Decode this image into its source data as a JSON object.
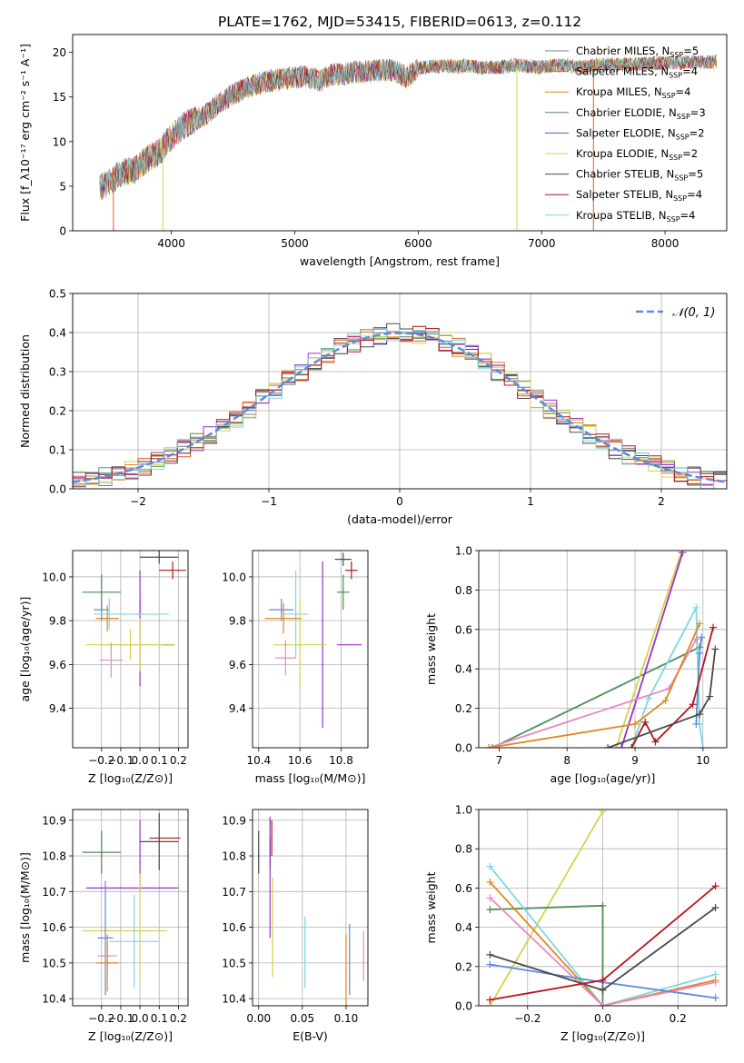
{
  "title": "PLATE=1762, MJD=53415, FIBERID=0613, z=0.112",
  "colors": {
    "chabrier_miles": "#7f7f7f",
    "salpeter_miles": "#e05a2a",
    "kroupa_miles": "#e0871c",
    "chabrier_elodie": "#4e8c55",
    "salpeter_elodie": "#9b30c9",
    "kroupa_elodie": "#d6d24a",
    "chabrier_stelib": "#4a4a4a",
    "salpeter_stelib": "#b5141c",
    "kroupa_stelib": "#7fd6e0",
    "normal_curve": "#5b8bd9",
    "pink": "#e78ac3",
    "blue": "#5b7fd9",
    "grid": "#b0b0b0"
  },
  "chart_data": [
    {
      "id": "spectrum",
      "type": "line",
      "xlabel": "wavelength [Angstrom, rest frame]",
      "ylabel": "Flux [f_λ10⁻¹⁷ erg cm⁻² s⁻¹ A⁻¹]",
      "xlim": [
        3200,
        8500
      ],
      "ylim": [
        0,
        22
      ],
      "xticks": [
        "4000",
        "5000",
        "6000",
        "7000",
        "8000"
      ],
      "yticks": [
        "0",
        "5",
        "10",
        "15",
        "20"
      ],
      "legend": [
        {
          "label": "Chabrier MILES, N_SSP=5",
          "sub": "SSP",
          "pre": "Chabrier MILES, N",
          "post": "=5",
          "color": "chabrier_miles"
        },
        {
          "label": "Salpeter MILES, N_SSP=4",
          "sub": "SSP",
          "pre": "Salpeter MILES, N",
          "post": "=4",
          "color": "salpeter_miles"
        },
        {
          "label": "Kroupa MILES, N_SSP=4",
          "sub": "SSP",
          "pre": "Kroupa MILES, N",
          "post": "=4",
          "color": "kroupa_miles"
        },
        {
          "label": "Chabrier ELODIE, N_SSP=3",
          "sub": "SSP",
          "pre": "Chabrier ELODIE, N",
          "post": "=3",
          "color": "chabrier_elodie"
        },
        {
          "label": "Salpeter ELODIE, N_SSP=2",
          "sub": "SSP",
          "pre": "Salpeter ELODIE, N",
          "post": "=2",
          "color": "salpeter_elodie"
        },
        {
          "label": "Kroupa ELODIE, N_SSP=2",
          "sub": "SSP",
          "pre": "Kroupa ELODIE, N",
          "post": "=2",
          "color": "kroupa_elodie"
        },
        {
          "label": "Chabrier STELIB, N_SSP=5",
          "sub": "SSP",
          "pre": "Chabrier STELIB, N",
          "post": "=5",
          "color": "chabrier_stelib"
        },
        {
          "label": "Salpeter STELIB, N_SSP=4",
          "sub": "SSP",
          "pre": "Salpeter STELIB, N",
          "post": "=4",
          "color": "salpeter_stelib"
        },
        {
          "label": "Kroupa STELIB, N_SSP=4",
          "sub": "SSP",
          "pre": "Kroupa STELIB, N",
          "post": "=4",
          "color": "kroupa_stelib"
        }
      ],
      "continuum": [
        [
          3420,
          4.8
        ],
        [
          3500,
          5.5
        ],
        [
          3600,
          6.5
        ],
        [
          3700,
          6.8
        ],
        [
          3800,
          8.0
        ],
        [
          3900,
          8.8
        ],
        [
          4000,
          10.5
        ],
        [
          4100,
          11.8
        ],
        [
          4200,
          12.5
        ],
        [
          4300,
          13.2
        ],
        [
          4400,
          14.5
        ],
        [
          4500,
          15.3
        ],
        [
          4600,
          16.0
        ],
        [
          4700,
          16.5
        ],
        [
          4800,
          16.8
        ],
        [
          4900,
          17.0
        ],
        [
          5000,
          17.2
        ],
        [
          5100,
          17.3
        ],
        [
          5200,
          16.8
        ],
        [
          5300,
          17.5
        ],
        [
          5400,
          17.6
        ],
        [
          5500,
          17.8
        ],
        [
          5600,
          17.9
        ],
        [
          5700,
          18.0
        ],
        [
          5800,
          18.0
        ],
        [
          5900,
          17.2
        ],
        [
          6000,
          18.2
        ],
        [
          6100,
          18.4
        ],
        [
          6200,
          18.5
        ],
        [
          6300,
          18.4
        ],
        [
          6400,
          18.5
        ],
        [
          6500,
          18.3
        ],
        [
          6600,
          18.3
        ],
        [
          6700,
          18.4
        ],
        [
          6800,
          18.6
        ],
        [
          6900,
          18.4
        ],
        [
          7000,
          18.3
        ],
        [
          7100,
          18.5
        ],
        [
          7200,
          18.6
        ],
        [
          7300,
          18.3
        ],
        [
          7400,
          18.5
        ],
        [
          7500,
          18.7
        ]
      ],
      "dropouts": [
        {
          "x": 3530,
          "color": "salpeter_miles"
        },
        {
          "x": 3930,
          "color": "kroupa_elodie"
        },
        {
          "x": 6800,
          "color": "kroupa_elodie"
        },
        {
          "x": 7420,
          "color": "salpeter_miles"
        }
      ]
    },
    {
      "id": "residuals",
      "type": "histogram",
      "xlabel": "(data-model)/error",
      "ylabel": "Normed distribution",
      "xlim": [
        -2.5,
        2.5
      ],
      "ylim": [
        0,
        0.5
      ],
      "xticks": [
        "−2",
        "−1",
        "0",
        "1",
        "2"
      ],
      "yticks": [
        "0.0",
        "0.1",
        "0.2",
        "0.3",
        "0.4",
        "0.5"
      ],
      "bin_width": 0.1,
      "legend_label": "𝒩(0, 1)",
      "series_colors": [
        "chabrier_miles",
        "salpeter_miles",
        "kroupa_miles",
        "chabrier_elodie",
        "salpeter_elodie",
        "kroupa_elodie",
        "chabrier_stelib",
        "salpeter_stelib",
        "kroupa_stelib"
      ]
    },
    {
      "id": "age_vs_z",
      "type": "errorbar",
      "xlabel": "Z [log₁₀(Z/Z⊙)]",
      "ylabel": "age  [log₁₀(age/yr)]",
      "xlim": [
        -0.35,
        0.25
      ],
      "ylim": [
        9.22,
        10.12
      ],
      "xticks": [
        "−0.2",
        "−0.1",
        "0.0",
        "0.1",
        "0.2"
      ],
      "yticks": [
        "9.4",
        "9.6",
        "9.8",
        "10.0"
      ],
      "points": [
        {
          "x": 0.1,
          "y": 10.09,
          "xerr": 0.1,
          "yerr": 0.03,
          "color": "chabrier_stelib"
        },
        {
          "x": 0.17,
          "y": 10.03,
          "xerr": 0.07,
          "yerr": 0.04,
          "color": "salpeter_stelib"
        },
        {
          "x": -0.2,
          "y": 9.93,
          "xerr": 0.1,
          "yerr": 0.08,
          "color": "chabrier_elodie"
        },
        {
          "x": -0.2,
          "y": 9.85,
          "xerr": 0.04,
          "yerr": 0.05,
          "color": "normal_curve"
        },
        {
          "x": -0.16,
          "y": 9.83,
          "xerr": 0.08,
          "yerr": 0.07,
          "color": "kroupa_stelib"
        },
        {
          "x": -0.17,
          "y": 9.81,
          "xerr": 0.06,
          "yerr": 0.06,
          "color": "kroupa_miles"
        },
        {
          "x": 0.0,
          "y": 9.93,
          "xerr": 0.0,
          "yerr": 0.1,
          "color": "salpeter_elodie"
        },
        {
          "x": 0.0,
          "y": 9.7,
          "xerr": 0.0,
          "yerr": 0.2,
          "color": "salpeter_elodie"
        },
        {
          "x": -0.05,
          "y": 9.69,
          "xerr": 0.23,
          "yerr": 0.07,
          "color": "kroupa_elodie"
        },
        {
          "x": 0.15,
          "y": 9.69,
          "xerr": 0.03,
          "yerr": 0.0,
          "color": "salpeter_elodie"
        },
        {
          "x": 0.0,
          "y": 9.69,
          "xerr": 0.18,
          "yerr": 0.12,
          "color": "kroupa_elodie"
        },
        {
          "x": -0.15,
          "y": 9.62,
          "xerr": 0.06,
          "yerr": 0.08,
          "color": "pink"
        },
        {
          "x": 0.02,
          "y": 9.83,
          "xerr": 0.13,
          "yerr": 0.0,
          "color": "kroupa_stelib"
        }
      ]
    },
    {
      "id": "age_vs_mass",
      "type": "errorbar",
      "xlabel": "mass [log₁₀(M/M⊙)]",
      "xlim": [
        10.37,
        10.93
      ],
      "ylim": [
        9.22,
        10.12
      ],
      "xticks": [
        "10.4",
        "10.6",
        "10.8"
      ],
      "yticks": [
        "9.4",
        "9.6",
        "9.8",
        "10.0"
      ],
      "points": [
        {
          "x": 10.81,
          "y": 10.08,
          "xerr": 0.04,
          "yerr": 0.03,
          "color": "chabrier_stelib"
        },
        {
          "x": 10.85,
          "y": 10.03,
          "xerr": 0.03,
          "yerr": 0.04,
          "color": "salpeter_stelib"
        },
        {
          "x": 10.81,
          "y": 9.93,
          "xerr": 0.03,
          "yerr": 0.08,
          "color": "chabrier_elodie"
        },
        {
          "x": 10.51,
          "y": 9.85,
          "xerr": 0.06,
          "yerr": 0.05,
          "color": "normal_curve"
        },
        {
          "x": 10.58,
          "y": 9.83,
          "xerr": 0.06,
          "yerr": 0.2,
          "color": "kroupa_stelib"
        },
        {
          "x": 10.52,
          "y": 9.81,
          "xerr": 0.09,
          "yerr": 0.07,
          "color": "kroupa_miles"
        },
        {
          "x": 10.71,
          "y": 9.69,
          "xerr": 0.0,
          "yerr": 0.38,
          "color": "salpeter_elodie"
        },
        {
          "x": 10.84,
          "y": 9.69,
          "xerr": 0.06,
          "yerr": 0.0,
          "color": "salpeter_elodie"
        },
        {
          "x": 10.6,
          "y": 9.69,
          "xerr": 0.13,
          "yerr": 0.2,
          "color": "kroupa_elodie"
        },
        {
          "x": 10.53,
          "y": 9.63,
          "xerr": 0.05,
          "yerr": 0.08,
          "color": "pink"
        }
      ]
    },
    {
      "id": "weight_vs_age",
      "type": "line",
      "xlabel": "age  [log₁₀(age/yr)]",
      "ylabel": "mass weight",
      "xlim": [
        6.7,
        10.35
      ],
      "ylim": [
        0,
        1
      ],
      "xticks": [
        "7",
        "8",
        "9",
        "10"
      ],
      "yticks": [
        "0.0",
        "0.2",
        "0.4",
        "0.6",
        "0.8",
        "1.0"
      ],
      "series": [
        {
          "color": "chabrier_elodie",
          "x": [
            6.9,
            9.95
          ],
          "y": [
            0.0,
            0.51
          ]
        },
        {
          "color": "kroupa_elodie",
          "x": [
            8.72,
            9.68
          ],
          "y": [
            0.0,
            0.99
          ]
        },
        {
          "color": "salpeter_elodie",
          "x": [
            8.8,
            9.7
          ],
          "y": [
            0.0,
            0.99
          ]
        },
        {
          "color": "kroupa_stelib",
          "x": [
            8.95,
            9.2,
            9.9,
            9.95,
            10.0
          ],
          "y": [
            0.0,
            0.25,
            0.71,
            0.12,
            0.0
          ]
        },
        {
          "color": "pink",
          "x": [
            6.85,
            9.5,
            9.9
          ],
          "y": [
            0.0,
            0.3,
            0.55
          ]
        },
        {
          "color": "kroupa_miles",
          "x": [
            6.85,
            9.0,
            9.45,
            9.95
          ],
          "y": [
            0.0,
            0.12,
            0.24,
            0.63
          ]
        },
        {
          "color": "normal_curve",
          "x": [
            9.9,
            9.95,
            9.98
          ],
          "y": [
            0.12,
            0.48,
            0.56
          ]
        },
        {
          "color": "salpeter_stelib",
          "x": [
            8.95,
            9.15,
            9.3,
            9.85,
            10.15
          ],
          "y": [
            0.0,
            0.13,
            0.03,
            0.22,
            0.61
          ]
        },
        {
          "color": "chabrier_stelib",
          "x": [
            8.6,
            9.95,
            10.1,
            10.18
          ],
          "y": [
            0.0,
            0.17,
            0.26,
            0.5
          ]
        }
      ]
    },
    {
      "id": "mass_vs_z",
      "type": "errorbar",
      "xlabel": "Z [log₁₀(Z/Z⊙)]",
      "ylabel": "mass [log₁₀(M/M⊙)]",
      "xlim": [
        -0.35,
        0.25
      ],
      "ylim": [
        10.38,
        10.93
      ],
      "xticks": [
        "−0.2",
        "−0.1",
        "0.0",
        "0.1",
        "0.2"
      ],
      "yticks": [
        "10.4",
        "10.5",
        "10.6",
        "10.7",
        "10.8",
        "10.9"
      ],
      "points": [
        {
          "x": 0.13,
          "y": 10.85,
          "xerr": 0.08,
          "yerr": 0.0,
          "color": "salpeter_stelib"
        },
        {
          "x": 0.1,
          "y": 10.84,
          "xerr": 0.1,
          "yerr": 0.08,
          "color": "chabrier_stelib"
        },
        {
          "x": -0.2,
          "y": 10.81,
          "xerr": 0.1,
          "yerr": 0.06,
          "color": "chabrier_elodie"
        },
        {
          "x": 0.0,
          "y": 10.8,
          "xerr": 0.0,
          "yerr": 0.1,
          "color": "salpeter_elodie"
        },
        {
          "x": -0.04,
          "y": 10.71,
          "xerr": 0.24,
          "yerr": 0.0,
          "color": "salpeter_elodie"
        },
        {
          "x": 0.0,
          "y": 10.6,
          "xerr": 0.0,
          "yerr": 0.15,
          "color": "kroupa_elodie"
        },
        {
          "x": -0.08,
          "y": 10.59,
          "xerr": 0.22,
          "yerr": 0.0,
          "color": "kroupa_elodie"
        },
        {
          "x": -0.03,
          "y": 10.56,
          "xerr": 0.13,
          "yerr": 0.13,
          "color": "kroupa_stelib"
        },
        {
          "x": -0.18,
          "y": 10.57,
          "xerr": 0.04,
          "yerr": 0.16,
          "color": "normal_curve"
        },
        {
          "x": -0.17,
          "y": 10.52,
          "xerr": 0.05,
          "yerr": 0.04,
          "color": "pink"
        },
        {
          "x": -0.17,
          "y": 10.5,
          "xerr": 0.06,
          "yerr": 0.08,
          "color": "kroupa_miles"
        }
      ]
    },
    {
      "id": "mass_vs_ebv",
      "type": "errorbar",
      "xlabel": "E(B-V)",
      "xlim": [
        -0.007,
        0.125
      ],
      "ylim": [
        10.38,
        10.93
      ],
      "xticks": [
        "0.00",
        "0.05",
        "0.10"
      ],
      "yticks": [
        "10.4",
        "10.5",
        "10.6",
        "10.7",
        "10.8",
        "10.9"
      ],
      "points": [
        {
          "x": 0.0,
          "y": 10.81,
          "xerr": 0.0,
          "yerr": 0.06,
          "color": "chabrier_stelib"
        },
        {
          "x": 0.013,
          "y": 10.84,
          "xerr": 0.0,
          "yerr": 0.07,
          "color": "salpeter_elodie"
        },
        {
          "x": 0.015,
          "y": 10.85,
          "xerr": 0.0,
          "yerr": 0.05,
          "color": "salpeter_stelib"
        },
        {
          "x": 0.013,
          "y": 10.71,
          "xerr": 0.0,
          "yerr": 0.14,
          "color": "salpeter_elodie"
        },
        {
          "x": 0.016,
          "y": 10.6,
          "xerr": 0.0,
          "yerr": 0.14,
          "color": "kroupa_elodie"
        },
        {
          "x": 0.053,
          "y": 10.53,
          "xerr": 0.0,
          "yerr": 0.1,
          "color": "kroupa_stelib"
        },
        {
          "x": 0.1,
          "y": 10.48,
          "xerr": 0.0,
          "yerr": 0.1,
          "color": "kroupa_miles"
        },
        {
          "x": 0.104,
          "y": 10.51,
          "xerr": 0.0,
          "yerr": 0.1,
          "color": "normal_curve"
        },
        {
          "x": 0.12,
          "y": 10.52,
          "xerr": 0.0,
          "yerr": 0.07,
          "color": "pink"
        }
      ]
    },
    {
      "id": "weight_vs_z",
      "type": "line",
      "xlabel": "Z [log₁₀(Z/Z⊙)]",
      "ylabel": "mass weight",
      "xlim": [
        -0.33,
        0.33
      ],
      "ylim": [
        0,
        1
      ],
      "xticks": [
        "−0.2",
        "0.0",
        "0.2"
      ],
      "yticks": [
        "0.0",
        "0.2",
        "0.4",
        "0.6",
        "0.8",
        "1.0"
      ],
      "series": [
        {
          "color": "kroupa_elodie",
          "x": [
            -0.3,
            0.0
          ],
          "y": [
            0.0,
            0.99
          ]
        },
        {
          "color": "chabrier_elodie",
          "x": [
            -0.3,
            0.0,
            0.0
          ],
          "y": [
            0.49,
            0.51,
            0.0
          ]
        },
        {
          "color": "kroupa_stelib",
          "x": [
            -0.3,
            0.0,
            0.3
          ],
          "y": [
            0.71,
            0.0,
            0.16
          ]
        },
        {
          "color": "kroupa_miles",
          "x": [
            -0.3,
            0.0,
            0.3
          ],
          "y": [
            0.63,
            0.0,
            0.13
          ]
        },
        {
          "color": "pink",
          "x": [
            -0.3,
            0.0,
            0.3
          ],
          "y": [
            0.55,
            0.0,
            0.12
          ]
        },
        {
          "color": "normal_curve",
          "x": [
            -0.3,
            0.0,
            0.3
          ],
          "y": [
            0.21,
            0.12,
            0.04
          ]
        },
        {
          "color": "salpeter_stelib",
          "x": [
            -0.3,
            0.0,
            0.3
          ],
          "y": [
            0.03,
            0.13,
            0.61
          ]
        },
        {
          "color": "chabrier_stelib",
          "x": [
            -0.3,
            0.0,
            0.3
          ],
          "y": [
            0.26,
            0.08,
            0.5
          ]
        }
      ]
    }
  ]
}
